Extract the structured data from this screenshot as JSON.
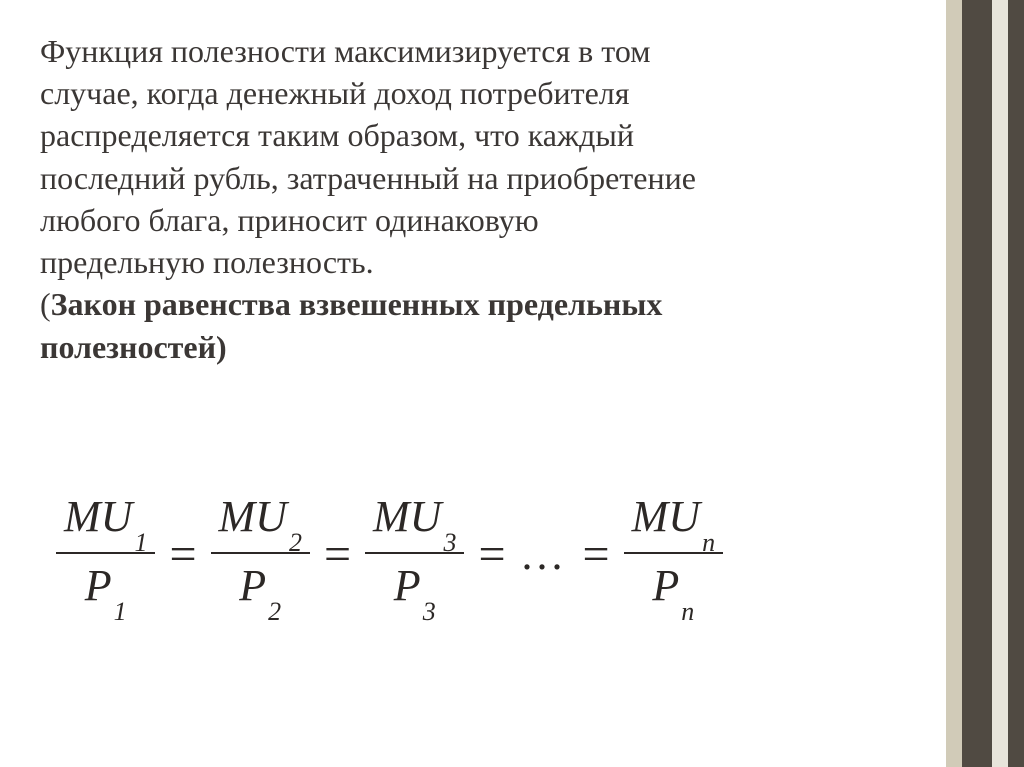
{
  "stripes": {
    "colors": [
      "#d1cbb8",
      "#504a42",
      "#e8e5db",
      "#504a42"
    ],
    "widths": [
      16,
      30,
      16,
      16
    ]
  },
  "paragraph": {
    "line1": "Функция полезности максимизируется в том",
    "line2": "случае, когда денежный доход потребителя",
    "line3": "распределяется таким образом, что каждый",
    "line4": "последний рубль, затраченный на приобретение",
    "line5": "любого блага, приносит одинаковую",
    "line6": "предельную полезность.",
    "line7_open": "(",
    "line7_bold": "Закон равенства взвешенных предельных",
    "line8_bold": "полезностей)"
  },
  "formula": {
    "terms": [
      {
        "numSym": "MU",
        "numSub": "1",
        "denSym": "P",
        "denSub": "1"
      },
      {
        "numSym": "MU",
        "numSub": "2",
        "denSym": "P",
        "denSub": "2"
      },
      {
        "numSym": "MU",
        "numSub": "3",
        "denSym": "P",
        "denSub": "3"
      }
    ],
    "lastTerm": {
      "numSym": "MU",
      "numSub": "n",
      "denSym": "P",
      "denSub": "n"
    },
    "eq": "=",
    "dots": "..."
  },
  "text_color": "#3b3735",
  "formula_color": "#2c2826",
  "background": "#ffffff"
}
